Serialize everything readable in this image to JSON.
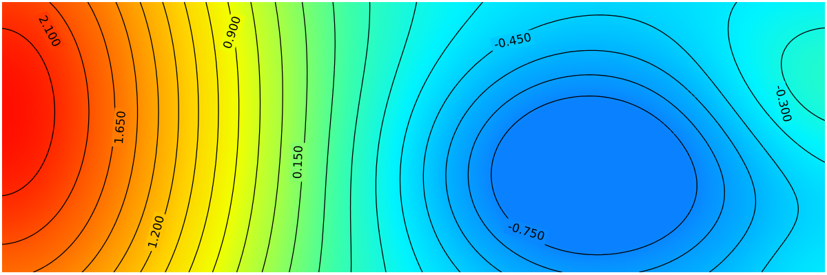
{
  "chart_data": {
    "type": "heatmap",
    "subtype": "filled contour with labeled isolines",
    "title": "",
    "xlabel": "",
    "ylabel": "",
    "axes_visible": false,
    "colormap": [
      "#ff0000",
      "#ff5a00",
      "#ff9c00",
      "#ffd400",
      "#f2ff00",
      "#a0ff4a",
      "#3cffa8",
      "#00f4ff",
      "#00b4ff",
      "#0a82ff"
    ],
    "contour_levels": {
      "step": 0.15,
      "min": -0.75,
      "max": 2.25,
      "negative_linestyle": "dashed",
      "positive_linestyle": "solid"
    },
    "field_extremes": {
      "maximum": 2.25,
      "maximum_location": "left edge, middle",
      "minimum": -0.78,
      "minimum_location": "right-center, below middle"
    },
    "contour_labels": [
      "2.100",
      "1.650",
      "1.200",
      "0.900",
      "0.150",
      "-0.450",
      "-0.750",
      "-0.300"
    ]
  }
}
